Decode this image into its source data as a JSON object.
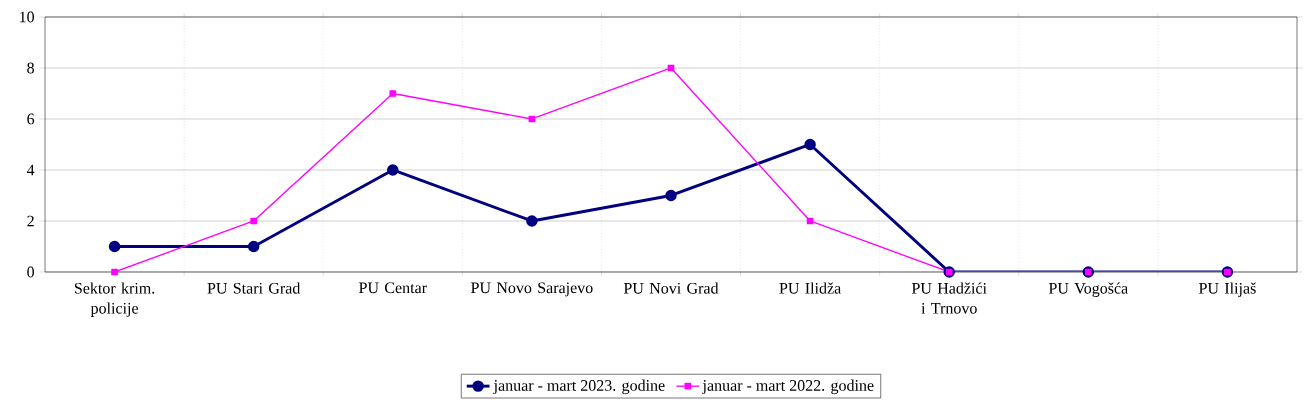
{
  "chart_data": {
    "type": "line",
    "categories": [
      "Sektor krim. policije",
      "PU Stari Grad",
      "PU Centar",
      "PU Novo Sarajevo",
      "PU Novi Grad",
      "PU Ilidža",
      "PU Hadžići i Trnovo",
      "PU Vogošća",
      "PU Ilijaš"
    ],
    "series": [
      {
        "name": "januar - mart 2023. godine",
        "color": "#000080",
        "marker": "circle",
        "values": [
          1,
          1,
          4,
          2,
          3,
          5,
          0,
          0,
          0
        ]
      },
      {
        "name": "januar - mart 2022. godine",
        "color": "#ff00ff",
        "marker": "square",
        "values": [
          0,
          2,
          7,
          6,
          8,
          2,
          0,
          0,
          0
        ]
      }
    ],
    "ylim": [
      0,
      10
    ],
    "yticks": [
      0,
      2,
      4,
      6,
      8,
      10
    ],
    "grid": true,
    "legend": "bottom"
  }
}
